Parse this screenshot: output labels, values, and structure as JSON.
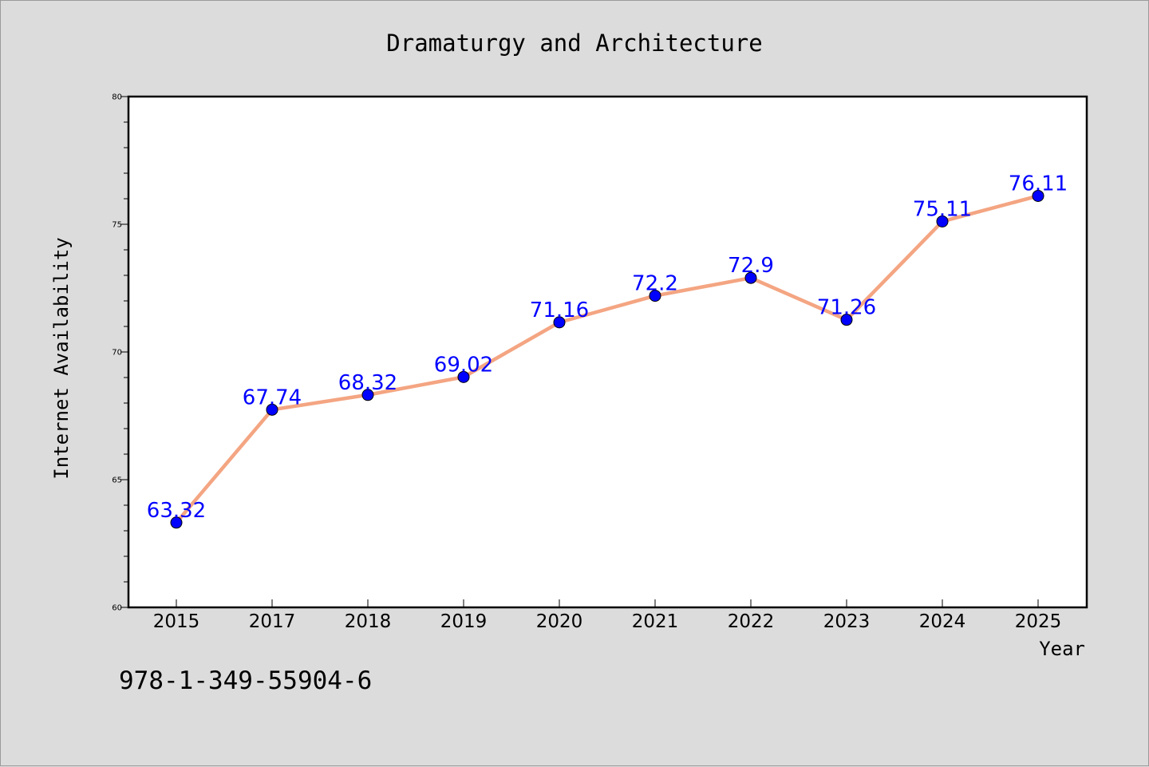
{
  "chart_data": {
    "type": "line",
    "title": "Dramaturgy and Architecture",
    "xlabel": "Year",
    "ylabel": "Internet Availability",
    "categories": [
      "2015",
      "2017",
      "2018",
      "2019",
      "2020",
      "2021",
      "2022",
      "2023",
      "2024",
      "2025"
    ],
    "series": [
      {
        "values": [
          63.32,
          67.74,
          68.32,
          69.02,
          71.16,
          72.2,
          72.9,
          71.26,
          75.11,
          76.11
        ]
      }
    ],
    "data_labels": [
      "63.32",
      "67.74",
      "68.32",
      "69.02",
      "71.16",
      "72.2",
      "72.9",
      "71.26",
      "75.11",
      "76.11"
    ],
    "ylim": [
      60,
      80
    ],
    "yticks": [
      60,
      65,
      70,
      75,
      80
    ],
    "yticks_minor_step": 1,
    "grid": false,
    "legend": "none",
    "colors": {
      "line": "#f4a582",
      "marker": "#0000ff",
      "label": "#0000ff",
      "background": "#dcdcdc",
      "plot_area": "#ffffff"
    }
  },
  "footer": {
    "isbn": "978-1-349-55904-6"
  }
}
